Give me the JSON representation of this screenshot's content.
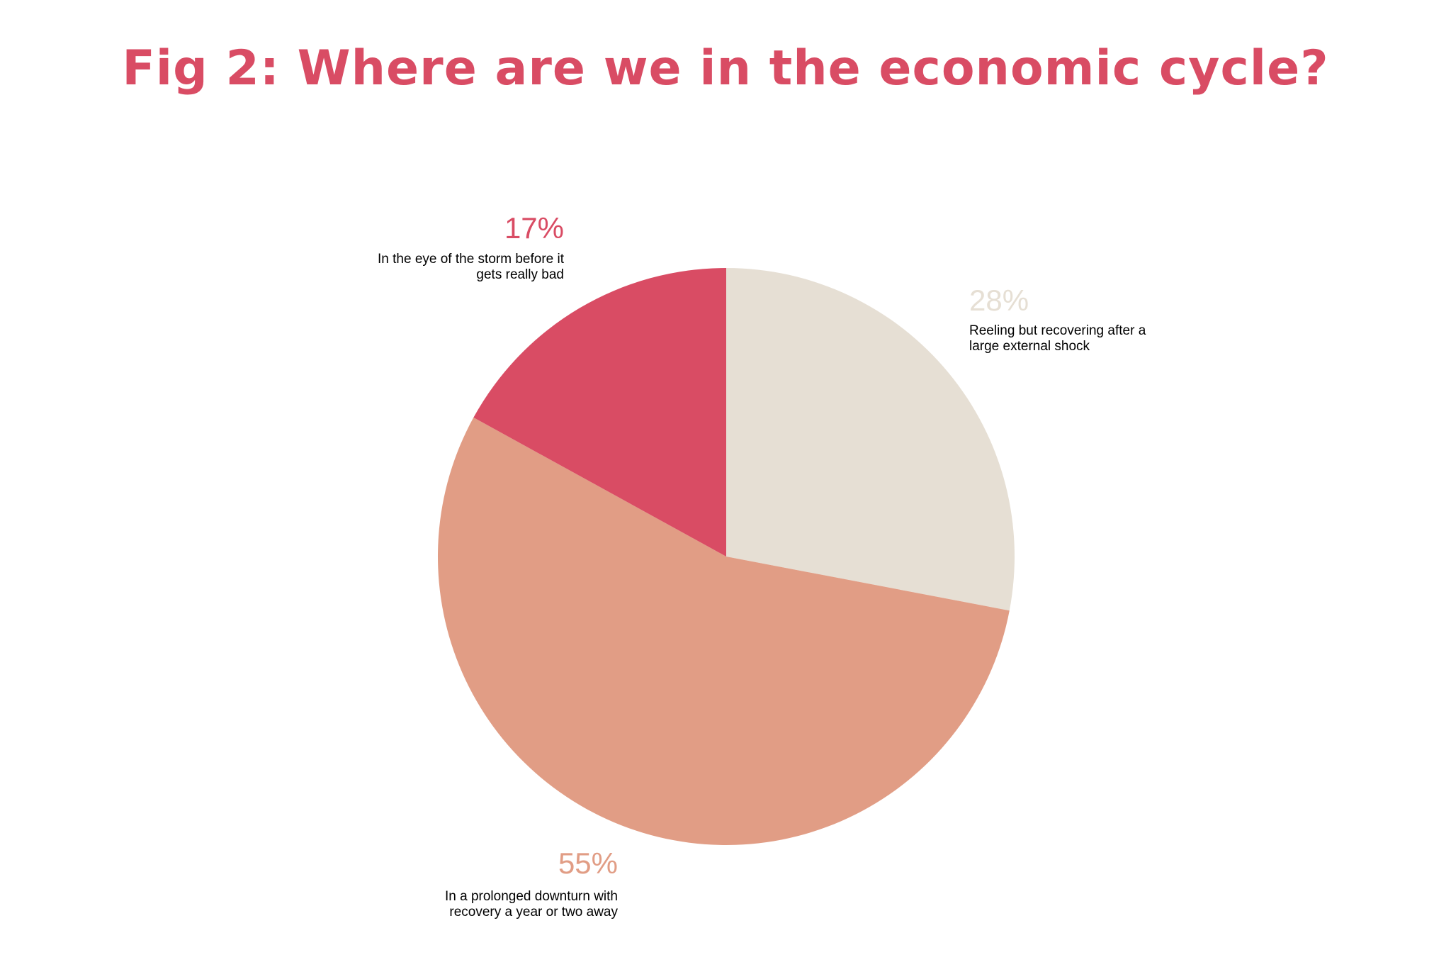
{
  "title": "Fig 2: Where are we in the economic cycle?",
  "colors": {
    "title": "#d94c64",
    "text": "#000000"
  },
  "chart_data": {
    "type": "pie",
    "title": "Fig 2: Where are we in the economic cycle?",
    "start_angle": "12 o'clock",
    "direction": "clockwise",
    "slices": [
      {
        "value": 28,
        "percent_label": "28%",
        "label": "Reeling but recovering after a\nlarge external shock",
        "color": "#e6dfd4"
      },
      {
        "value": 55,
        "percent_label": "55%",
        "label": "In a prolonged downturn with\nrecovery a year or two away",
        "color": "#e19d85"
      },
      {
        "value": 17,
        "percent_label": "17%",
        "label": "In the eye of the storm before it\ngets really bad",
        "color": "#d94c64"
      }
    ]
  }
}
